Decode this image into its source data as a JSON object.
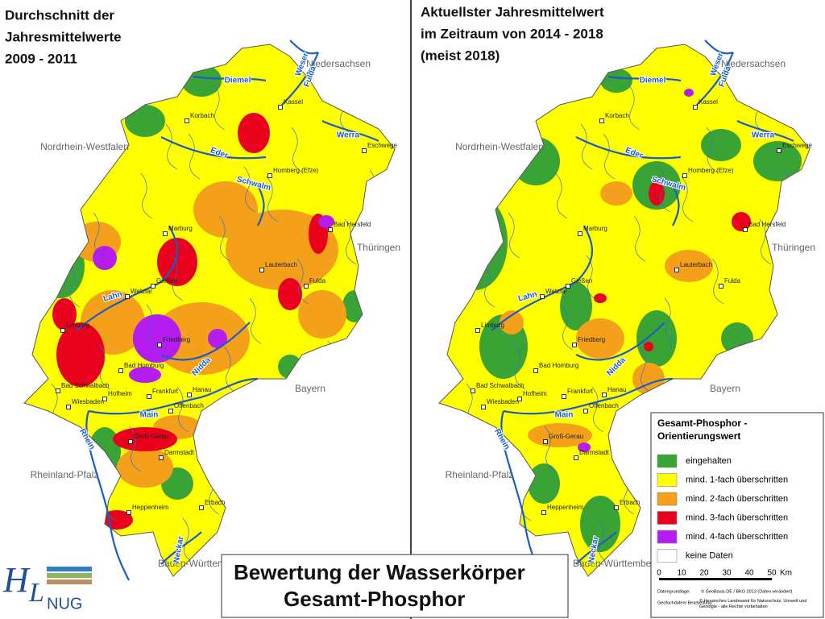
{
  "left_panel": {
    "title": [
      "Durchschnitt der",
      "Jahresmittelwerte",
      "2009 - 2011"
    ]
  },
  "right_panel": {
    "title": [
      "Aktuellster Jahresmittelwert",
      "im Zeitraum von 2014 - 2018",
      "(meist 2018)"
    ]
  },
  "places": [
    "Kassel",
    "Korbach",
    "Eschwege",
    "Homberg (Efze)",
    "Bad Hersfeld",
    "Marburg",
    "Lauterbach",
    "Fulda",
    "Gießen",
    "Wetzlar",
    "Limburg",
    "Friedberg",
    "Bad Homburg",
    "Bad Schwalbach",
    "Hofheim",
    "Frankfurt",
    "Hanau",
    "Wiesbaden",
    "Offenbach",
    "Groß-Gerau",
    "Darmstadt",
    "Heppenheim",
    "Erbach"
  ],
  "neighbors": [
    "Niedersachsen",
    "Nordrhein-Westfalen",
    "Thüringen",
    "Bayern",
    "Rheinland-Pfalz",
    "Baden-Württemberg"
  ],
  "rivers": [
    "Diemel",
    "Fulda",
    "Weser",
    "Werra",
    "Eder",
    "Schwalm",
    "Lahn",
    "Nidda",
    "Main",
    "Rhein",
    "Neckar"
  ],
  "legend": {
    "title": [
      "Gesamt-Phosphor -",
      "Orientierungswert"
    ],
    "items": [
      {
        "label": "eingehalten",
        "color": "#3aa335"
      },
      {
        "label": "mind. 1-fach überschritten",
        "color": "#ffff00"
      },
      {
        "label": "mind. 2-fach überschritten",
        "color": "#f5a01a"
      },
      {
        "label": "mind. 3-fach überschritten",
        "color": "#e8001c"
      },
      {
        "label": "mind. 4-fach überschritten",
        "color": "#b41cf0"
      },
      {
        "label": "keine Daten",
        "color": "#ffffff"
      }
    ],
    "scale": [
      0,
      10,
      20,
      30,
      40,
      50
    ],
    "scale_unit": "Km",
    "sources": [
      [
        "Datengrundlage:",
        "© GeoBasis-DE / BKG 2013 (Daten verändert)"
      ],
      [
        "Geofachdaten/ Bearbeitung:",
        "© Hessisches Landesamt für Naturschutz, Umwelt und Geologie - alle Rechte vorbehalten"
      ]
    ]
  },
  "main_title": [
    "Bewertung der Wasserkörper",
    "Gesamt-Phosphor"
  ],
  "logo": [
    "H",
    "L",
    "NUG"
  ]
}
